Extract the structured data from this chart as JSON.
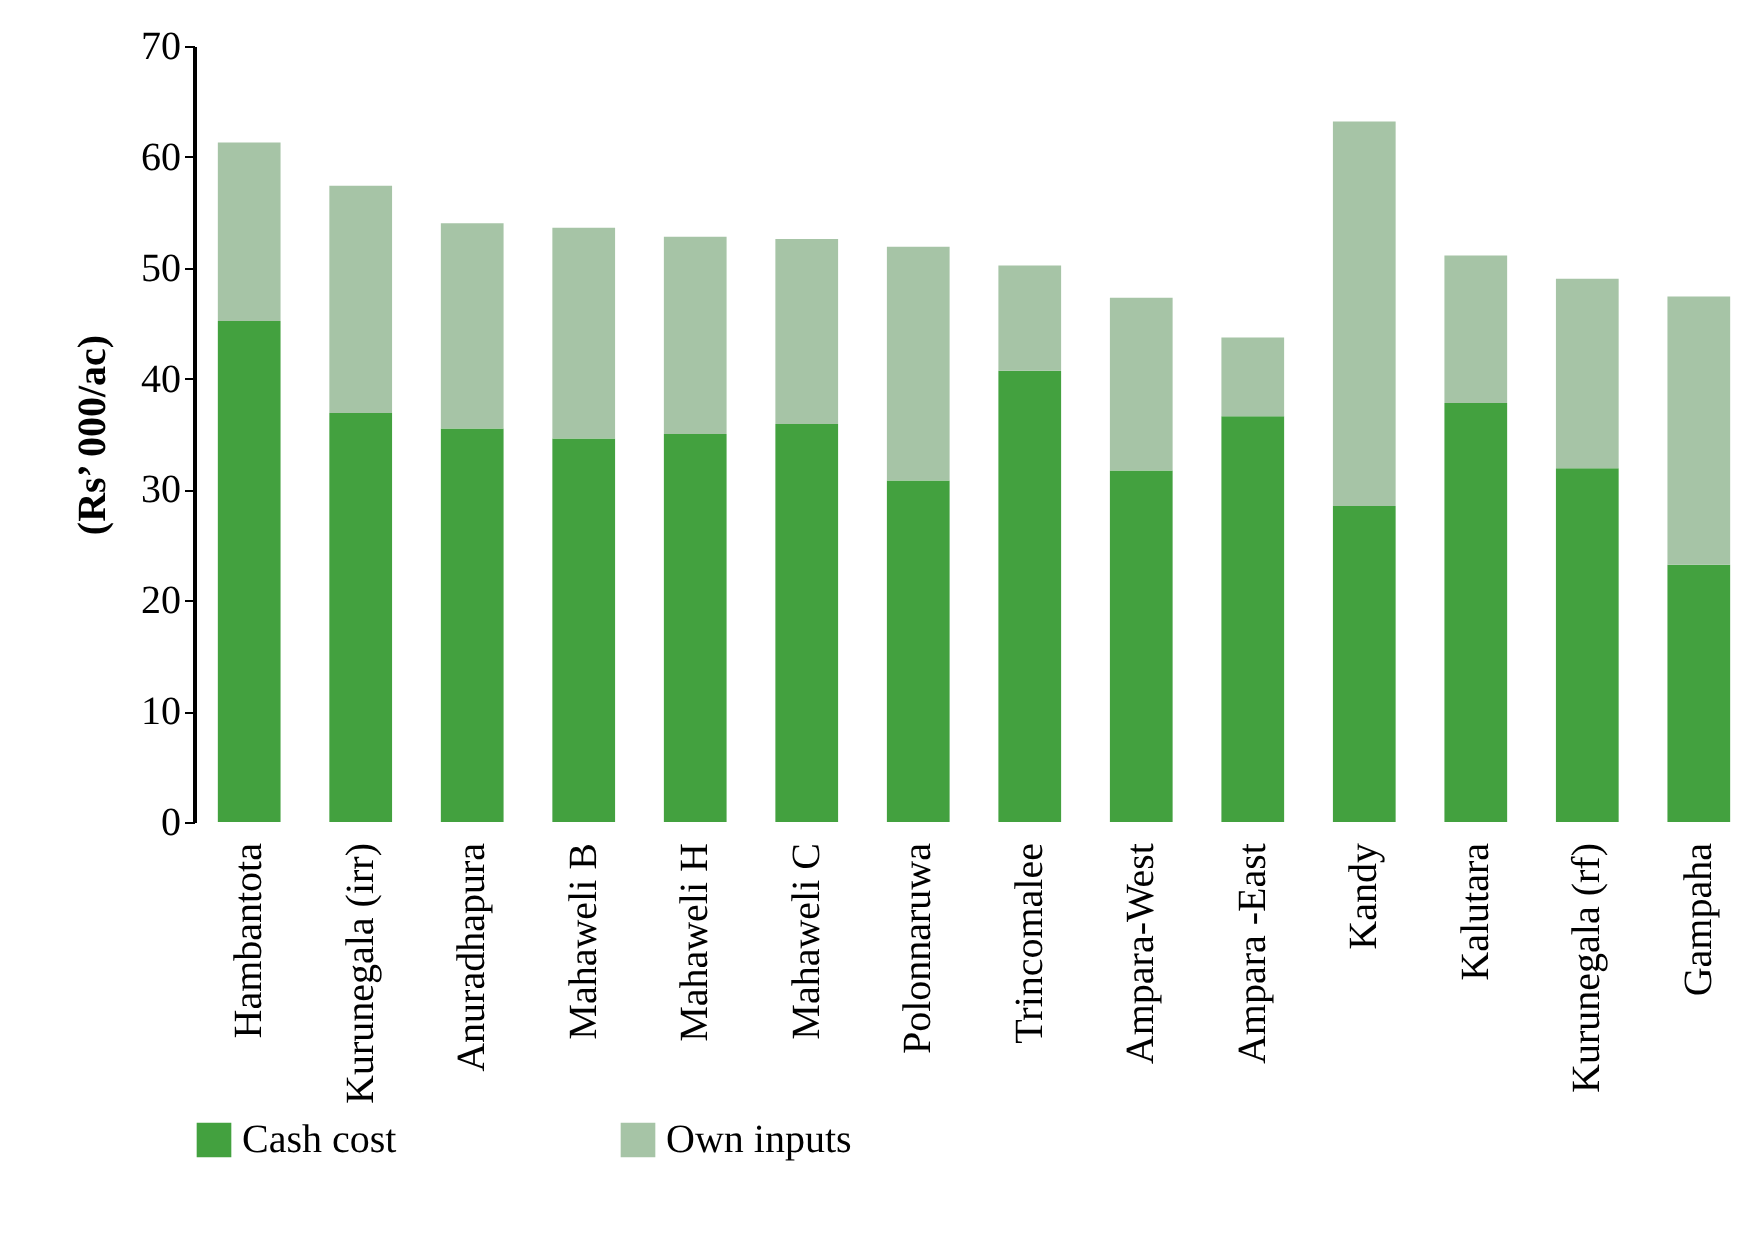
{
  "chart_data": {
    "type": "bar",
    "stacked": true,
    "ylabel": "(Rs’ 000/ac)",
    "categories": [
      "Hambantota",
      "Kurunegala (irr)",
      "Anuradhapura",
      "Mahaweli B",
      "Mahaweli  H",
      "Mahaweli  C",
      "Polonnaruwa",
      "Trincomalee",
      "Ampara-West",
      "Ampara -East",
      "Kandy",
      "Kalutara",
      "Kurunegala (rf)",
      "Gampaha"
    ],
    "series": [
      {
        "name": "Cash cost",
        "color": "#43a13f",
        "values": [
          45.2,
          36.9,
          35.5,
          34.6,
          35.0,
          35.9,
          30.8,
          40.7,
          31.7,
          36.6,
          28.5,
          37.8,
          31.9,
          23.2
        ]
      },
      {
        "name": "Own inputs",
        "color": "#a6c4a6",
        "values": [
          16.1,
          20.5,
          18.5,
          19.0,
          17.8,
          16.7,
          21.1,
          9.5,
          15.6,
          7.1,
          34.7,
          13.3,
          17.1,
          24.2
        ]
      }
    ],
    "ylim": [
      0,
      70
    ],
    "yticks": [
      0,
      10,
      20,
      30,
      40,
      50,
      60,
      70
    ],
    "grid": false,
    "legend": "bottom"
  }
}
